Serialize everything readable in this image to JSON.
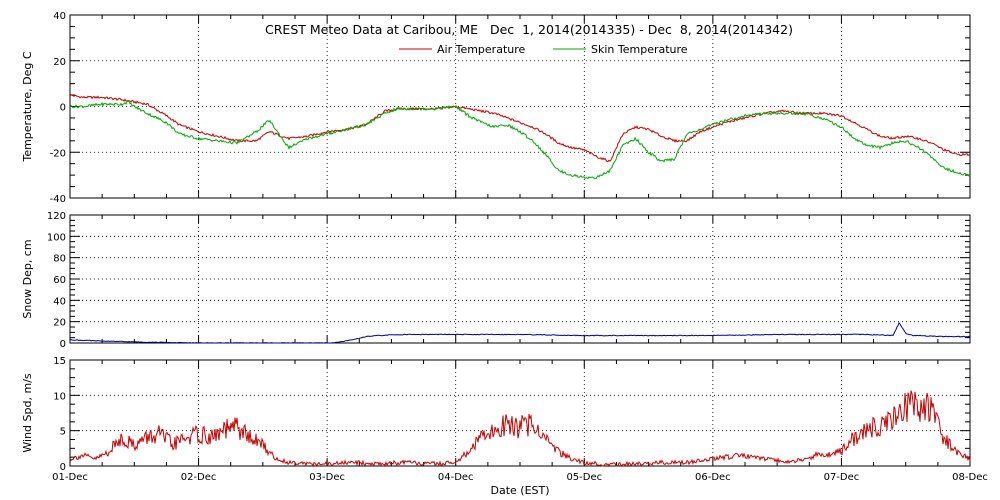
{
  "chart_data": {
    "title": "CREST Meteo Data at Caribou, ME   Dec  1, 2014(2014335) - Dec  8, 2014(2014342)",
    "xlabel": "Date (EST)",
    "x_ticks": [
      "01-Dec",
      "02-Dec",
      "03-Dec",
      "04-Dec",
      "05-Dec",
      "06-Dec",
      "07-Dec",
      "08-Dec"
    ],
    "x_range_days": [
      0,
      7
    ],
    "grid": true,
    "panels": [
      {
        "type": "line",
        "ylabel": "Temperature, Deg C",
        "ylim": [
          -40,
          40
        ],
        "y_ticks": [
          -40,
          -20,
          0,
          20,
          40
        ],
        "legend": [
          {
            "name": "Air Temperature",
            "color": "#cc0000"
          },
          {
            "name": "Skin Temperature",
            "color": "#00aa00"
          }
        ],
        "series": [
          {
            "name": "Air Temperature",
            "color": "#cc0000",
            "x": [
              0,
              0.1,
              0.25,
              0.4,
              0.5,
              0.6,
              0.75,
              0.85,
              1.0,
              1.15,
              1.3,
              1.45,
              1.55,
              1.7,
              1.85,
              2.0,
              2.15,
              2.3,
              2.45,
              2.55,
              2.7,
              2.85,
              3.0,
              3.1,
              3.2,
              3.3,
              3.4,
              3.5,
              3.6,
              3.7,
              3.8,
              3.9,
              4.0,
              4.1,
              4.2,
              4.3,
              4.4,
              4.5,
              4.6,
              4.7,
              4.8,
              4.9,
              5.0,
              5.1,
              5.25,
              5.4,
              5.55,
              5.7,
              5.85,
              6.0,
              6.1,
              6.2,
              6.3,
              6.4,
              6.5,
              6.6,
              6.7,
              6.8,
              6.9,
              7.0
            ],
            "y": [
              5,
              4,
              4,
              3,
              2,
              1,
              -4,
              -8,
              -11,
              -13,
              -15,
              -15,
              -11,
              -14,
              -13,
              -11,
              -10,
              -8,
              -2,
              -1,
              -1,
              -1,
              0,
              -1,
              -2,
              -3,
              -5,
              -7,
              -9,
              -12,
              -16,
              -18,
              -19,
              -22,
              -24,
              -12,
              -9,
              -10,
              -13,
              -15,
              -15,
              -11,
              -9,
              -7,
              -5,
              -3,
              -2,
              -3,
              -3,
              -4,
              -7,
              -10,
              -13,
              -14,
              -13,
              -14,
              -16,
              -19,
              -21,
              -21
            ]
          },
          {
            "name": "Skin Temperature",
            "color": "#00aa00",
            "x": [
              0,
              0.1,
              0.25,
              0.4,
              0.45,
              0.5,
              0.6,
              0.75,
              0.85,
              1.0,
              1.15,
              1.3,
              1.45,
              1.55,
              1.7,
              1.85,
              2.0,
              2.15,
              2.3,
              2.45,
              2.55,
              2.7,
              2.85,
              3.0,
              3.1,
              3.2,
              3.3,
              3.4,
              3.5,
              3.6,
              3.7,
              3.8,
              3.9,
              4.0,
              4.1,
              4.2,
              4.3,
              4.4,
              4.5,
              4.6,
              4.7,
              4.8,
              4.9,
              5.0,
              5.1,
              5.25,
              5.4,
              5.55,
              5.7,
              5.85,
              6.0,
              6.1,
              6.2,
              6.3,
              6.4,
              6.5,
              6.6,
              6.7,
              6.8,
              6.9,
              7.0
            ],
            "y": [
              0,
              0,
              1,
              1,
              2,
              0,
              -3,
              -7,
              -12,
              -14,
              -15,
              -16,
              -11,
              -6,
              -18,
              -14,
              -12,
              -10,
              -8,
              -3,
              -1,
              -1,
              -1,
              0,
              -4,
              -7,
              -9,
              -8,
              -11,
              -15,
              -21,
              -28,
              -30,
              -31,
              -31,
              -28,
              -17,
              -14,
              -20,
              -24,
              -23,
              -12,
              -10,
              -8,
              -6,
              -4,
              -3,
              -3,
              -3,
              -5,
              -9,
              -14,
              -17,
              -18,
              -16,
              -15,
              -18,
              -22,
              -27,
              -29,
              -30
            ]
          }
        ]
      },
      {
        "type": "line",
        "ylabel": "Snow Dep, cm",
        "ylim": [
          0,
          120
        ],
        "y_ticks": [
          0,
          20,
          40,
          60,
          80,
          100,
          120
        ],
        "series": [
          {
            "name": "Snow Depth",
            "color": "#000099",
            "x": [
              0,
              0.2,
              0.5,
              1.0,
              1.5,
              2.0,
              2.1,
              2.2,
              2.3,
              2.4,
              2.6,
              3.0,
              3.5,
              4.0,
              4.5,
              5.0,
              5.5,
              6.0,
              6.2,
              6.4,
              6.45,
              6.5,
              6.55,
              6.6,
              6.8,
              7.0
            ],
            "y": [
              3,
              2,
              1,
              0,
              0,
              0,
              1,
              3,
              6,
              7,
              8,
              8,
              8,
              7,
              7,
              7,
              8,
              8,
              8,
              7,
              19,
              9,
              7,
              7,
              6,
              6
            ]
          }
        ]
      },
      {
        "type": "line",
        "ylabel": "Wind Spd, m/s",
        "ylim": [
          0,
          15
        ],
        "y_ticks": [
          0,
          5,
          10,
          15
        ],
        "series": [
          {
            "name": "Wind Speed",
            "color": "#cc0000",
            "x": [
              0,
              0.1,
              0.2,
              0.3,
              0.4,
              0.5,
              0.6,
              0.7,
              0.8,
              0.9,
              1.0,
              1.1,
              1.2,
              1.3,
              1.4,
              1.5,
              1.6,
              1.7,
              1.8,
              1.9,
              2.0,
              2.2,
              2.4,
              2.6,
              2.8,
              3.0,
              3.1,
              3.2,
              3.3,
              3.4,
              3.5,
              3.6,
              3.7,
              3.8,
              3.9,
              4.0,
              4.2,
              4.4,
              4.6,
              4.8,
              5.0,
              5.2,
              5.4,
              5.6,
              5.8,
              6.0,
              6.1,
              6.2,
              6.3,
              6.4,
              6.5,
              6.6,
              6.7,
              6.8,
              6.9,
              7.0
            ],
            "y": [
              1,
              1.5,
              1,
              2,
              4,
              3,
              4,
              4.5,
              3,
              4,
              4.5,
              4,
              5,
              5.5,
              4,
              3,
              1,
              0.5,
              0.5,
              0.2,
              0.3,
              0.5,
              0.3,
              0.5,
              0.3,
              0.5,
              2,
              4,
              5,
              6,
              5.5,
              6,
              4,
              2,
              1,
              0.5,
              0.2,
              0.3,
              0.5,
              0.5,
              1,
              1.5,
              1,
              0.5,
              1.5,
              2,
              4,
              5,
              6,
              7,
              8,
              9,
              8,
              4,
              2,
              1
            ]
          }
        ]
      }
    ]
  }
}
